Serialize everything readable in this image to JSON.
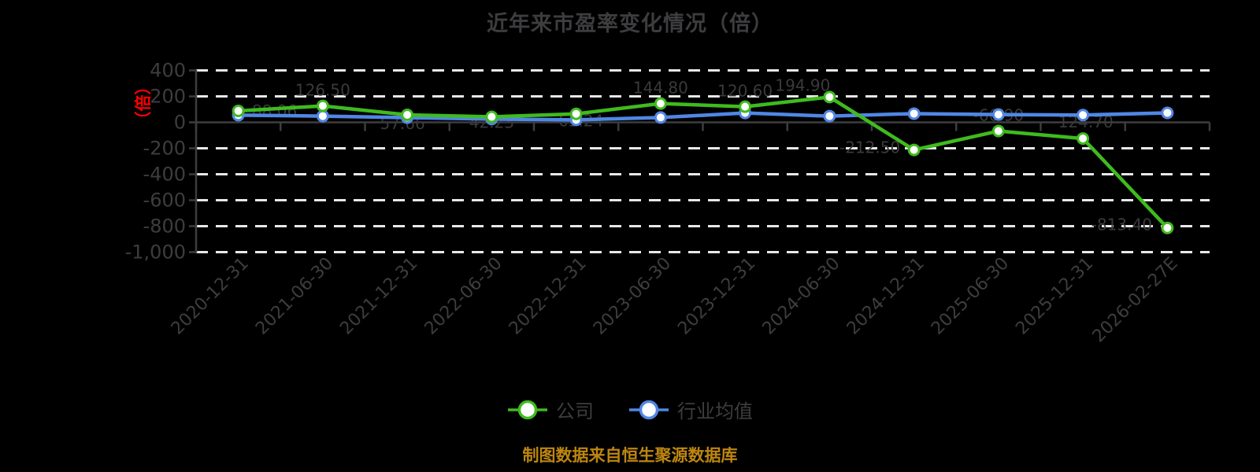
{
  "chart": {
    "title": "近年来市盈率变化情况（倍）",
    "y_axis_unit_label": "（倍）",
    "source_note": "制图数据来自恒生聚源数据库"
  },
  "legend": {
    "items": [
      {
        "label": "公司",
        "color": "#3fbb1e"
      },
      {
        "label": "行业均值",
        "color": "#5087e5"
      }
    ]
  },
  "colors": {
    "background": "#000000",
    "title_text": "#3d3d3f",
    "axis": "#3d3d3f",
    "tick_label": "#3d3d3f",
    "gridline": "#e8e8e8",
    "data_label": "#3a3a3c",
    "y_axis_unit": "#ff0000",
    "company_series": "#3fbb1e",
    "industry_series": "#5087e5",
    "source_note": "#bd860f",
    "marker_fill": "#ffffff"
  },
  "chart_data": {
    "type": "line",
    "title": "近年来市盈率变化情况（倍）",
    "categories": [
      "2020-12-31",
      "2021-06-30",
      "2021-12-31",
      "2022-06-30",
      "2022-12-31",
      "2023-06-30",
      "2023-12-31",
      "2024-06-30",
      "2024-12-31",
      "2025-06-30",
      "2025-12-31",
      "2026-02-27E"
    ],
    "series": [
      {
        "name": "公司",
        "color": "#3fbb1e",
        "values": [
          88.06,
          126.5,
          57.66,
          42.23,
          65.24,
          144.8,
          120.6,
          194.9,
          -212.5,
          -66.9,
          -124.7,
          -813.4
        ],
        "labels": [
          "88.06",
          "126.50",
          "57.66",
          "42.23",
          "65.24",
          "144.80",
          "120.60",
          "194.90",
          "-212.50",
          "-66.90",
          "-124.70",
          "-813.40"
        ]
      },
      {
        "name": "行业均值",
        "color": "#5087e5",
        "values": [
          55,
          48,
          36,
          25,
          19,
          37,
          72,
          48,
          67,
          60,
          56,
          73
        ]
      }
    ],
    "ylim": [
      -1000,
      400
    ],
    "y_ticks": [
      400,
      200,
      0,
      -200,
      -400,
      -600,
      -800,
      -1000
    ],
    "y_axis_name": "（倍）",
    "y_axis_name_color": "#ff0000",
    "x_label_rotation": 45,
    "grid": "horizontal dashed, x-axis on zero line",
    "legend_position": "bottom center",
    "source_note": "制图数据来自恒生聚源数据库"
  }
}
